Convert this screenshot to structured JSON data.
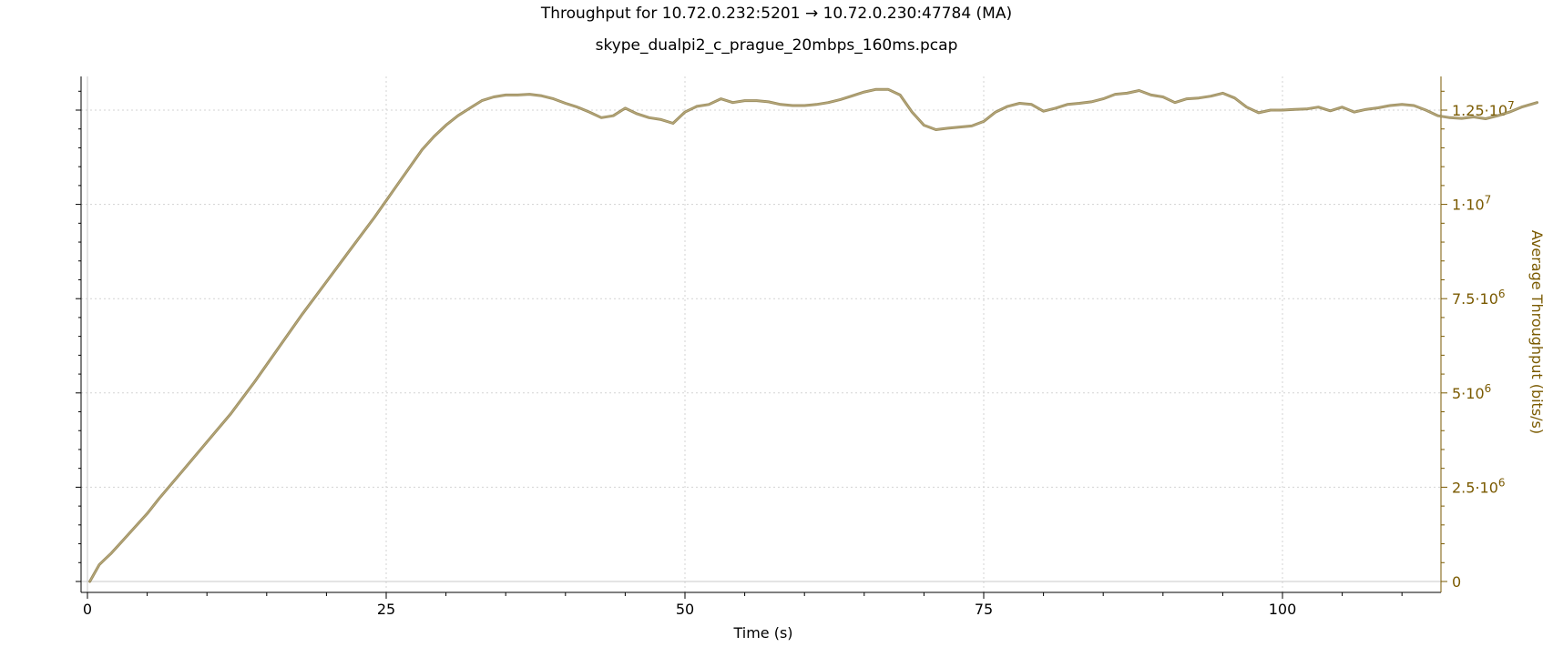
{
  "chart_data": {
    "type": "line",
    "title": "Throughput for 10.72.0.232:5201 → 10.72.0.230:47784 (MA)",
    "subtitle": "skype_dualpi2_c_prague_20mbps_160ms.pcap",
    "xlabel": "Time (s)",
    "ylabel": "Average Throughput (bits/s)",
    "xlim": [
      0,
      121.5
    ],
    "ylim": [
      -150000,
      13400000
    ],
    "x_ticks": [
      {
        "value": 0,
        "label": "0"
      },
      {
        "value": 25,
        "label": "25"
      },
      {
        "value": 50,
        "label": "50"
      },
      {
        "value": 75,
        "label": "75"
      },
      {
        "value": 100,
        "label": "100"
      }
    ],
    "y_ticks": [
      {
        "value": 0,
        "mant": "0",
        "exp": ""
      },
      {
        "value": 2500000,
        "mant": "2.5·10",
        "exp": "6"
      },
      {
        "value": 5000000,
        "mant": "5·10",
        "exp": "6"
      },
      {
        "value": 7500000,
        "mant": "7.5·10",
        "exp": "6"
      },
      {
        "value": 10000000,
        "mant": "1·10",
        "exp": "7"
      },
      {
        "value": 12500000,
        "mant": "1.25·10",
        "exp": "7"
      }
    ],
    "grid": true,
    "series_color": "#8b7a45",
    "axis_color": "#7a5a00",
    "series": [
      {
        "x": [
          0.2,
          1,
          1.5,
          2,
          3,
          4,
          5,
          6,
          8,
          10,
          12,
          14,
          16,
          18,
          20,
          22,
          24,
          25,
          26,
          27,
          28,
          29,
          30,
          31,
          32,
          33,
          34,
          35,
          36,
          37,
          38,
          39,
          40,
          41,
          42,
          43,
          44,
          45,
          46,
          47,
          48,
          49,
          50,
          51,
          52,
          53,
          54,
          55,
          56,
          57,
          58,
          59,
          60,
          61,
          62,
          63,
          64,
          65,
          66,
          67,
          68,
          69,
          70,
          71,
          72,
          73,
          74,
          75,
          76,
          77,
          78,
          79,
          80,
          81,
          82,
          83,
          84,
          85,
          86,
          87,
          88,
          89,
          90,
          91,
          92,
          93,
          94,
          95,
          96,
          97,
          98,
          99,
          100,
          101,
          102,
          103,
          104,
          105,
          106,
          107,
          108,
          109,
          110,
          111,
          112,
          113,
          114,
          115,
          116,
          117,
          118,
          119,
          120,
          121.3
        ],
        "y": [
          0,
          450000,
          600000,
          750000,
          1100000,
          1450000,
          1800000,
          2200000,
          2950000,
          3700000,
          4450000,
          5300000,
          6200000,
          7100000,
          7950000,
          8800000,
          9650000,
          10100000,
          10550000,
          11000000,
          11450000,
          11800000,
          12100000,
          12350000,
          12550000,
          12750000,
          12850000,
          12900000,
          12900000,
          12920000,
          12880000,
          12800000,
          12680000,
          12580000,
          12450000,
          12300000,
          12350000,
          12550000,
          12400000,
          12300000,
          12250000,
          12150000,
          12450000,
          12600000,
          12650000,
          12800000,
          12700000,
          12750000,
          12750000,
          12720000,
          12650000,
          12620000,
          12620000,
          12650000,
          12700000,
          12780000,
          12880000,
          12980000,
          13050000,
          13050000,
          12900000,
          12450000,
          12100000,
          11980000,
          12020000,
          12050000,
          12080000,
          12200000,
          12450000,
          12600000,
          12680000,
          12650000,
          12470000,
          12550000,
          12650000,
          12680000,
          12720000,
          12800000,
          12920000,
          12950000,
          13020000,
          12900000,
          12850000,
          12700000,
          12800000,
          12820000,
          12870000,
          12950000,
          12820000,
          12580000,
          12430000,
          12500000,
          12500000,
          12520000,
          12530000,
          12580000,
          12480000,
          12580000,
          12450000,
          12520000,
          12560000,
          12620000,
          12650000,
          12620000,
          12500000,
          12350000,
          12300000,
          12280000,
          12320000,
          12270000,
          12350000,
          12450000,
          12580000,
          12700000
        ]
      }
    ]
  }
}
